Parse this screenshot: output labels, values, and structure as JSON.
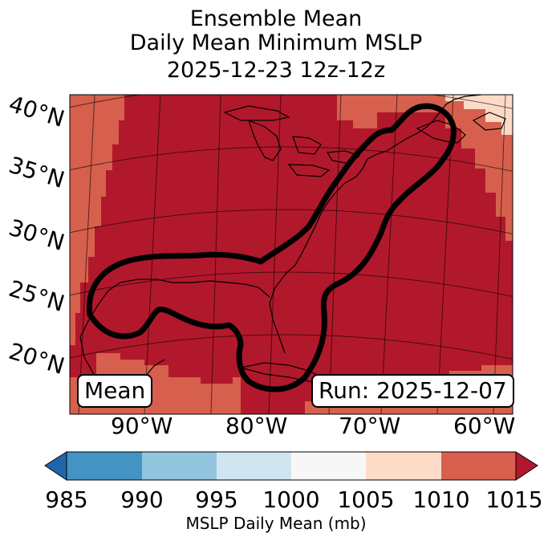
{
  "title": {
    "line1": "Ensemble Mean",
    "line2": "Daily Mean Minimum MSLP",
    "line3": "2025-12-23 12z-12z"
  },
  "map": {
    "lat_labels": [
      "40°N",
      "35°N",
      "30°N",
      "25°N",
      "20°N"
    ],
    "lon_labels": [
      "90°W",
      "80°W",
      "70°W",
      "60°W"
    ],
    "mean_box": "Mean",
    "run_box": "Run: 2025-12-07",
    "fill_colors": {
      "band_1010_1015": "#b2182b",
      "band_1005_1010": "#d6604d",
      "band_1000_1005": "#fddbc7"
    }
  },
  "colorbar": {
    "label": "MSLP Daily Mean (mb)",
    "ticks": [
      "985",
      "990",
      "995",
      "1000",
      "1005",
      "1010",
      "1015"
    ],
    "colors": [
      "#2166ac",
      "#4393c3",
      "#92c5de",
      "#d1e5f0",
      "#f7f7f7",
      "#fddbc7",
      "#d6604d",
      "#b2182b"
    ]
  }
}
